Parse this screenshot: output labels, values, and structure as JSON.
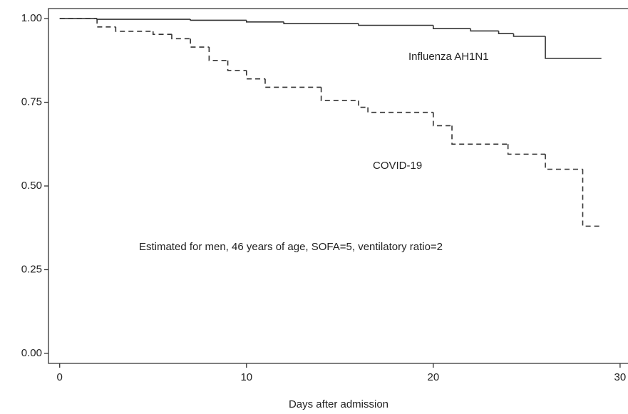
{
  "chart_data": {
    "type": "step",
    "xlabel": "Days after admission",
    "annotation": "Estimated for men, 46 years of age, SOFA=5, ventilatory ratio=2",
    "xlim": [
      -0.6,
      30.5
    ],
    "ylim": [
      -0.03,
      1.03
    ],
    "xticks": [
      0,
      10,
      20,
      30
    ],
    "yticks": [
      {
        "value": 0,
        "label": "0.00"
      },
      {
        "value": 0.25,
        "label": "0.25"
      },
      {
        "value": 0.5,
        "label": "0.50"
      },
      {
        "value": 0.75,
        "label": "0.75"
      },
      {
        "value": 1,
        "label": "1.00"
      }
    ],
    "series": [
      {
        "name": "Influenza AH1N1",
        "color": "#333333",
        "dash": "none",
        "x": [
          0,
          2,
          7,
          10,
          12,
          16,
          20,
          22,
          23.5,
          24.3,
          26,
          29
        ],
        "values": [
          1,
          0.998,
          0.995,
          0.99,
          0.985,
          0.98,
          0.97,
          0.963,
          0.955,
          0.947,
          0.881,
          0.881
        ]
      },
      {
        "name": "COVID-19",
        "color": "#333333",
        "dash": "7 5",
        "x": [
          0,
          2,
          3,
          5,
          6,
          7,
          8,
          9,
          10,
          11,
          14,
          16,
          16.5,
          20,
          21,
          24,
          26,
          28,
          29
        ],
        "values": [
          1,
          0.975,
          0.962,
          0.953,
          0.94,
          0.915,
          0.875,
          0.845,
          0.82,
          0.795,
          0.755,
          0.735,
          0.72,
          0.68,
          0.625,
          0.595,
          0.55,
          0.38,
          0.38
        ]
      }
    ]
  }
}
